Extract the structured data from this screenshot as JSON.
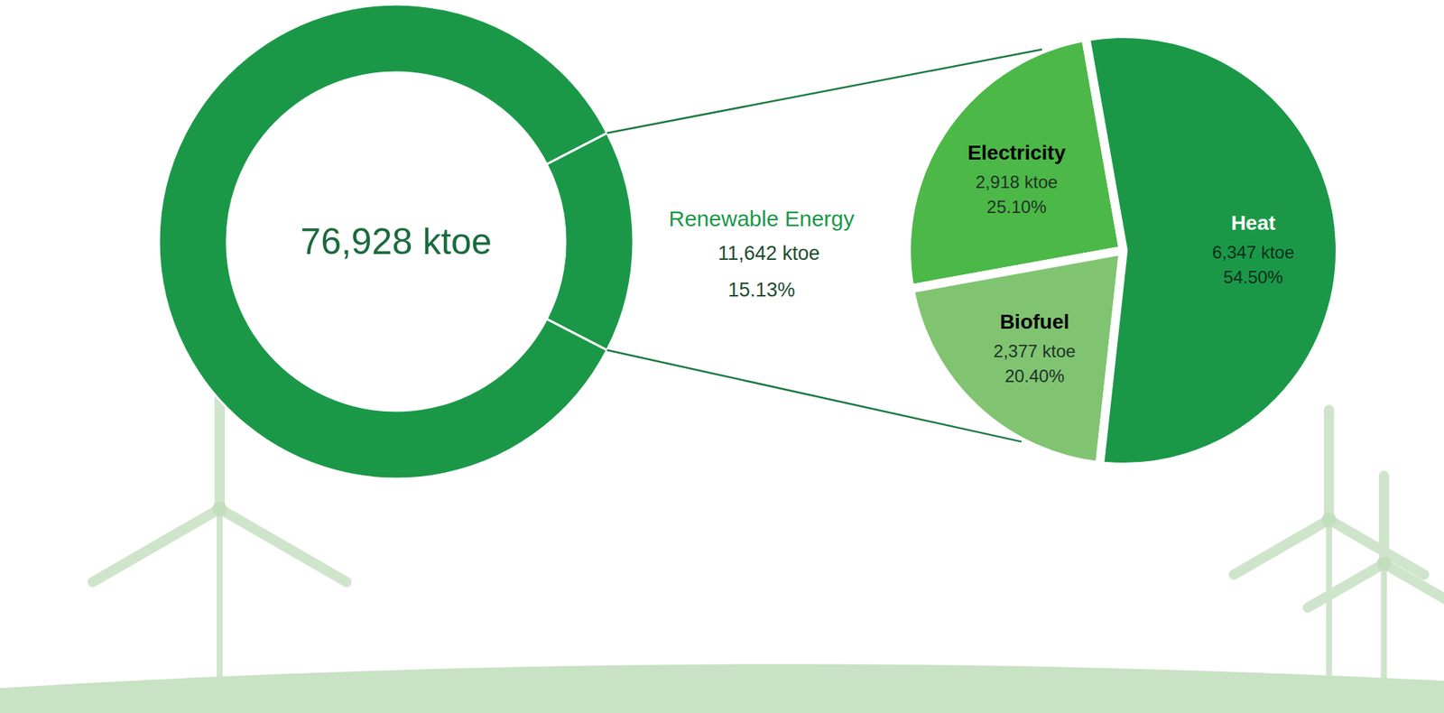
{
  "chart_data": [
    {
      "type": "donut",
      "center_label": "76,928 ktoe",
      "categories": [
        "Renewable Energy",
        null
      ],
      "values": [
        11642,
        65286
      ],
      "value_labels": [
        "11,642 ktoe",
        null
      ],
      "percent_labels": [
        "15.13%",
        null
      ],
      "colors": [
        "#1a9848",
        "#1a9848"
      ]
    },
    {
      "type": "pie",
      "categories": [
        "Electricity",
        "Biofuel",
        "Heat"
      ],
      "values": [
        2918,
        2377,
        6347
      ],
      "value_labels": [
        "2,918 ktoe",
        "2,377 ktoe",
        "6,347 ktoe"
      ],
      "percent_labels": [
        "25.10%",
        "20.40%",
        "54.50%"
      ],
      "colors": [
        "#4cb848",
        "#80c472",
        "#1a9848"
      ]
    }
  ]
}
